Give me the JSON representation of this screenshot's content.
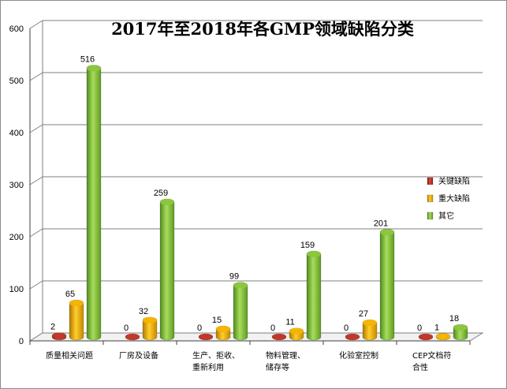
{
  "chart_data": {
    "type": "bar",
    "title": "2017年至2018年各GMP领域缺陷分类",
    "xlabel": "",
    "ylabel": "",
    "ylim": [
      0,
      600
    ],
    "yticks": [
      0,
      100,
      200,
      300,
      400,
      500,
      600
    ],
    "grid": true,
    "legend_position": "right",
    "categories": [
      [
        "质量相关问题"
      ],
      [
        "厂房及设备"
      ],
      [
        "生产、拒收、",
        "重新利用"
      ],
      [
        "物料管理、",
        "储存等"
      ],
      [
        "化验室控制"
      ],
      [
        "CEP文档符",
        "合性"
      ]
    ],
    "series": [
      {
        "name": "关键缺陷",
        "values": [
          2,
          0,
          0,
          0,
          0,
          0
        ],
        "color": "#c0392b"
      },
      {
        "name": "重大缺陷",
        "values": [
          65,
          32,
          15,
          11,
          27,
          1
        ],
        "color": "#f5b400"
      },
      {
        "name": "其它",
        "values": [
          516,
          259,
          99,
          159,
          201,
          18
        ],
        "color": "#8cc63f"
      }
    ]
  }
}
